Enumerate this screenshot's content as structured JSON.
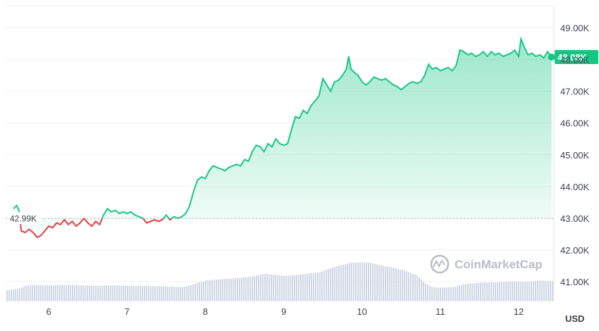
{
  "chart_data": {
    "type": "line",
    "currency_unit": "USD",
    "x_ticks": [
      "6",
      "7",
      "8",
      "9",
      "10",
      "11",
      "12"
    ],
    "y_ticks": [
      "49.00K",
      "48.00K",
      "47.00K",
      "46.00K",
      "45.00K",
      "44.00K",
      "43.00K",
      "42.00K",
      "41.00K"
    ],
    "y_tick_values": [
      49000,
      48000,
      47000,
      46000,
      45000,
      44000,
      43000,
      42000,
      41000
    ],
    "ylim": [
      40400,
      49700
    ],
    "xlim": [
      5.45,
      12.45
    ],
    "reference_value": 42990,
    "reference_label": "42.99K",
    "current_value": 48080,
    "current_label": "48.08K",
    "colors": {
      "up": "#16c784",
      "down": "#ea3943",
      "volume": "#cfd6e4",
      "current_bg": "#16c784"
    },
    "watermark": "CoinMarketCap",
    "series": [
      {
        "values": [
          [
            5.55,
            43300
          ],
          [
            5.59,
            43400
          ],
          [
            5.62,
            43250
          ],
          [
            5.65,
            42600
          ],
          [
            5.7,
            42550
          ],
          [
            5.75,
            42650
          ],
          [
            5.8,
            42550
          ],
          [
            5.85,
            42400
          ],
          [
            5.9,
            42450
          ],
          [
            5.95,
            42600
          ],
          [
            6.0,
            42750
          ],
          [
            6.05,
            42700
          ],
          [
            6.1,
            42850
          ],
          [
            6.15,
            42800
          ],
          [
            6.2,
            42950
          ],
          [
            6.25,
            42800
          ],
          [
            6.3,
            42900
          ],
          [
            6.35,
            42750
          ],
          [
            6.4,
            42850
          ],
          [
            6.45,
            43000
          ],
          [
            6.5,
            42850
          ],
          [
            6.55,
            42750
          ],
          [
            6.6,
            42900
          ],
          [
            6.65,
            42800
          ],
          [
            6.7,
            43100
          ],
          [
            6.75,
            43300
          ],
          [
            6.8,
            43200
          ],
          [
            6.85,
            43250
          ],
          [
            6.9,
            43150
          ],
          [
            6.95,
            43200
          ],
          [
            7.0,
            43150
          ],
          [
            7.05,
            43200
          ],
          [
            7.1,
            43100
          ],
          [
            7.15,
            43050
          ],
          [
            7.2,
            43000
          ],
          [
            7.25,
            42850
          ],
          [
            7.3,
            42900
          ],
          [
            7.35,
            42950
          ],
          [
            7.4,
            42900
          ],
          [
            7.45,
            42950
          ],
          [
            7.5,
            43100
          ],
          [
            7.55,
            42950
          ],
          [
            7.6,
            43050
          ],
          [
            7.65,
            43000
          ],
          [
            7.7,
            43050
          ],
          [
            7.75,
            43150
          ],
          [
            7.8,
            43400
          ],
          [
            7.85,
            43850
          ],
          [
            7.9,
            44200
          ],
          [
            7.95,
            44300
          ],
          [
            8.0,
            44250
          ],
          [
            8.05,
            44500
          ],
          [
            8.1,
            44650
          ],
          [
            8.15,
            44600
          ],
          [
            8.2,
            44550
          ],
          [
            8.25,
            44500
          ],
          [
            8.3,
            44600
          ],
          [
            8.35,
            44650
          ],
          [
            8.4,
            44700
          ],
          [
            8.45,
            44650
          ],
          [
            8.5,
            44850
          ],
          [
            8.55,
            44800
          ],
          [
            8.6,
            45100
          ],
          [
            8.65,
            45300
          ],
          [
            8.7,
            45250
          ],
          [
            8.75,
            45100
          ],
          [
            8.8,
            45350
          ],
          [
            8.85,
            45250
          ],
          [
            8.9,
            45500
          ],
          [
            8.95,
            45350
          ],
          [
            9.0,
            45300
          ],
          [
            9.05,
            45350
          ],
          [
            9.1,
            45800
          ],
          [
            9.15,
            46200
          ],
          [
            9.2,
            46150
          ],
          [
            9.25,
            46400
          ],
          [
            9.3,
            46300
          ],
          [
            9.35,
            46550
          ],
          [
            9.4,
            46700
          ],
          [
            9.45,
            46850
          ],
          [
            9.5,
            47400
          ],
          [
            9.55,
            47200
          ],
          [
            9.6,
            47000
          ],
          [
            9.65,
            47300
          ],
          [
            9.7,
            47350
          ],
          [
            9.75,
            47500
          ],
          [
            9.8,
            47700
          ],
          [
            9.83,
            48100
          ],
          [
            9.86,
            47700
          ],
          [
            9.9,
            47600
          ],
          [
            9.95,
            47500
          ],
          [
            10.0,
            47300
          ],
          [
            10.05,
            47200
          ],
          [
            10.1,
            47300
          ],
          [
            10.15,
            47450
          ],
          [
            10.2,
            47400
          ],
          [
            10.25,
            47350
          ],
          [
            10.3,
            47400
          ],
          [
            10.35,
            47300
          ],
          [
            10.4,
            47200
          ],
          [
            10.45,
            47150
          ],
          [
            10.5,
            47050
          ],
          [
            10.55,
            47150
          ],
          [
            10.6,
            47250
          ],
          [
            10.65,
            47300
          ],
          [
            10.7,
            47250
          ],
          [
            10.75,
            47300
          ],
          [
            10.8,
            47500
          ],
          [
            10.85,
            47850
          ],
          [
            10.9,
            47700
          ],
          [
            10.95,
            47750
          ],
          [
            11.0,
            47650
          ],
          [
            11.05,
            47700
          ],
          [
            11.1,
            47750
          ],
          [
            11.15,
            47650
          ],
          [
            11.2,
            47800
          ],
          [
            11.25,
            48300
          ],
          [
            11.3,
            48250
          ],
          [
            11.35,
            48150
          ],
          [
            11.4,
            48200
          ],
          [
            11.45,
            48100
          ],
          [
            11.5,
            48150
          ],
          [
            11.55,
            48250
          ],
          [
            11.6,
            48100
          ],
          [
            11.65,
            48250
          ],
          [
            11.7,
            48150
          ],
          [
            11.75,
            48200
          ],
          [
            11.8,
            48100
          ],
          [
            11.85,
            48150
          ],
          [
            11.9,
            48200
          ],
          [
            11.95,
            48300
          ],
          [
            12.0,
            48100
          ],
          [
            12.03,
            48650
          ],
          [
            12.08,
            48350
          ],
          [
            12.12,
            48150
          ],
          [
            12.17,
            48200
          ],
          [
            12.22,
            48100
          ],
          [
            12.27,
            48150
          ],
          [
            12.32,
            48050
          ],
          [
            12.37,
            48250
          ],
          [
            12.42,
            48080
          ]
        ]
      }
    ],
    "volume": [
      [
        5.5,
        0.24
      ],
      [
        5.6,
        0.26
      ],
      [
        5.7,
        0.33
      ],
      [
        5.8,
        0.35
      ],
      [
        6.0,
        0.34
      ],
      [
        6.2,
        0.35
      ],
      [
        6.4,
        0.34
      ],
      [
        6.6,
        0.33
      ],
      [
        6.8,
        0.34
      ],
      [
        7.0,
        0.33
      ],
      [
        7.2,
        0.33
      ],
      [
        7.4,
        0.32
      ],
      [
        7.6,
        0.31
      ],
      [
        7.7,
        0.3
      ],
      [
        7.8,
        0.34
      ],
      [
        7.9,
        0.4
      ],
      [
        8.0,
        0.45
      ],
      [
        8.2,
        0.48
      ],
      [
        8.4,
        0.5
      ],
      [
        8.6,
        0.54
      ],
      [
        8.75,
        0.6
      ],
      [
        8.85,
        0.58
      ],
      [
        9.0,
        0.55
      ],
      [
        9.15,
        0.57
      ],
      [
        9.3,
        0.6
      ],
      [
        9.45,
        0.63
      ],
      [
        9.55,
        0.7
      ],
      [
        9.7,
        0.78
      ],
      [
        9.85,
        0.84
      ],
      [
        10.0,
        0.85
      ],
      [
        10.1,
        0.84
      ],
      [
        10.25,
        0.78
      ],
      [
        10.4,
        0.73
      ],
      [
        10.55,
        0.66
      ],
      [
        10.7,
        0.56
      ],
      [
        10.8,
        0.38
      ],
      [
        10.9,
        0.3
      ],
      [
        11.0,
        0.29
      ],
      [
        11.15,
        0.3
      ],
      [
        11.3,
        0.37
      ],
      [
        11.5,
        0.4
      ],
      [
        11.7,
        0.41
      ],
      [
        11.9,
        0.43
      ],
      [
        12.1,
        0.42
      ],
      [
        12.25,
        0.45
      ],
      [
        12.45,
        0.43
      ]
    ]
  }
}
